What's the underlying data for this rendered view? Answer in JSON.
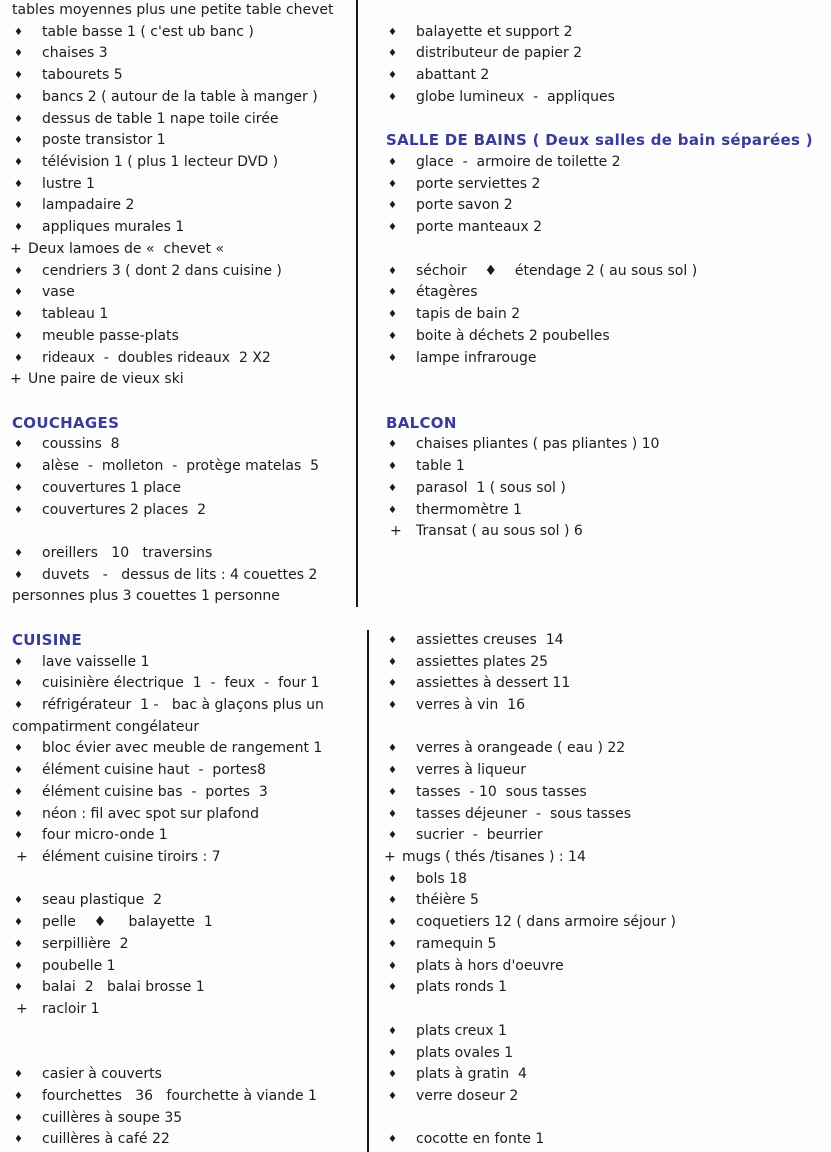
{
  "page": {
    "background": "#fdfdfd",
    "text_color": "#1c1c1c",
    "header_color": "#3a3a99",
    "divider_color": "#1a1a1a",
    "bullet_glyph": "♦",
    "plus_glyph": "+"
  },
  "columns": {
    "left": {
      "lines": [
        {
          "type": "plain",
          "text": "tables moyennes plus une petite table chevet"
        },
        {
          "type": "bullet",
          "text": "table basse 1 ( c'est ub banc )"
        },
        {
          "type": "bullet",
          "text": "chaises 3"
        },
        {
          "type": "bullet",
          "text": "tabourets 5"
        },
        {
          "type": "bullet",
          "text": "bancs 2 ( autour de la table à manger )"
        },
        {
          "type": "bullet",
          "text": "dessus de table 1 nape toile cirée"
        },
        {
          "type": "bullet",
          "text": "poste transistor 1"
        },
        {
          "type": "bullet",
          "text": "télévision 1 ( plus 1 lecteur DVD )"
        },
        {
          "type": "bullet",
          "text": "lustre 1"
        },
        {
          "type": "bullet",
          "text": "lampadaire 2"
        },
        {
          "type": "bullet",
          "text": "appliques murales 1"
        },
        {
          "type": "plus",
          "text": "Deux lamoes de «  chevet «"
        },
        {
          "type": "bullet",
          "text": "cendriers 3 ( dont 2 dans cuisine )"
        },
        {
          "type": "bullet",
          "text": "vase"
        },
        {
          "type": "bullet",
          "text": "tableau 1"
        },
        {
          "type": "bullet",
          "text": "meuble passe-plats"
        },
        {
          "type": "bullet",
          "text": "rideaux  -  doubles rideaux  2 X2"
        },
        {
          "type": "plus",
          "text": "Une paire de vieux ski"
        },
        {
          "type": "blank",
          "text": ""
        },
        {
          "type": "header",
          "text": "COUCHAGES"
        },
        {
          "type": "bullet",
          "text": "coussins  8"
        },
        {
          "type": "bullet",
          "text": "alèse  -  molleton  -  protège matelas  5"
        },
        {
          "type": "bullet",
          "text": "couvertures 1 place"
        },
        {
          "type": "bullet",
          "text": "couvertures 2 places  2"
        },
        {
          "type": "blank",
          "text": ""
        },
        {
          "type": "bullet",
          "text": "oreillers   10   traversins"
        },
        {
          "type": "bullet",
          "text": "duvets   -   dessus de lits : 4 couettes 2"
        },
        {
          "type": "cont",
          "text": "personnes plus 3 couettes 1 personne"
        },
        {
          "type": "blank",
          "text": ""
        },
        {
          "type": "header",
          "text": "CUISINE"
        },
        {
          "type": "bullet",
          "text": "lave vaisselle 1"
        },
        {
          "type": "bullet",
          "text": "cuisinière électrique  1  -  feux  -  four 1"
        },
        {
          "type": "bullet",
          "text": "réfrigérateur  1 -   bac à glaçons plus un"
        },
        {
          "type": "cont",
          "text": "compatirment congélateur"
        },
        {
          "type": "bullet",
          "text": "bloc évier avec meuble de rangement 1"
        },
        {
          "type": "bullet",
          "text": "élément cuisine haut  -  portes8"
        },
        {
          "type": "bullet",
          "text": "élément cuisine bas  -  portes  3"
        },
        {
          "type": "bullet",
          "text": "néon : fil avec spot sur plafond"
        },
        {
          "type": "bullet",
          "text": "four micro-onde 1"
        },
        {
          "type": "plusIndent",
          "text": "élément cuisine tiroirs : 7"
        },
        {
          "type": "blank",
          "text": ""
        },
        {
          "type": "bullet",
          "text": "seau plastique  2"
        },
        {
          "type": "bullet",
          "text": "pelle    ♦     balayette  1"
        },
        {
          "type": "bullet",
          "text": "serpillière  2"
        },
        {
          "type": "bullet",
          "text": "poubelle 1"
        },
        {
          "type": "bullet",
          "text": "balai  2   balai brosse 1"
        },
        {
          "type": "plusIndent",
          "text": "racloir 1"
        },
        {
          "type": "blank",
          "text": ""
        },
        {
          "type": "blank",
          "text": ""
        },
        {
          "type": "bullet",
          "text": "casier à couverts"
        },
        {
          "type": "bullet",
          "text": "fourchettes   36   fourchette à viande 1"
        },
        {
          "type": "bullet",
          "text": "cuillères à soupe 35"
        },
        {
          "type": "bullet",
          "text": "cuillères à café 22"
        }
      ]
    },
    "right": {
      "lines": [
        {
          "type": "blank",
          "text": ""
        },
        {
          "type": "bullet",
          "text": "balayette et support 2"
        },
        {
          "type": "bullet",
          "text": "distributeur de papier 2"
        },
        {
          "type": "bullet",
          "text": "abattant 2"
        },
        {
          "type": "bullet",
          "text": "globe lumineux  -  appliques"
        },
        {
          "type": "blank",
          "text": ""
        },
        {
          "type": "header",
          "text": "SALLE DE BAINS ( Deux salles de bain séparées )"
        },
        {
          "type": "bullet",
          "text": "glace  -  armoire de toilette 2"
        },
        {
          "type": "bullet",
          "text": "porte serviettes 2"
        },
        {
          "type": "bullet",
          "text": "porte savon 2"
        },
        {
          "type": "bullet",
          "text": "porte manteaux 2"
        },
        {
          "type": "blank",
          "text": ""
        },
        {
          "type": "bullet",
          "text": "séchoir    ♦    étendage 2 ( au sous sol )"
        },
        {
          "type": "bullet",
          "text": "étagères"
        },
        {
          "type": "bullet",
          "text": "tapis de bain 2"
        },
        {
          "type": "bullet",
          "text": "boite à déchets 2 poubelles"
        },
        {
          "type": "bullet",
          "text": "lampe infrarouge"
        },
        {
          "type": "blank",
          "text": ""
        },
        {
          "type": "blank",
          "text": ""
        },
        {
          "type": "header",
          "text": "BALCON"
        },
        {
          "type": "bullet",
          "text": "chaises pliantes ( pas pliantes ) 10"
        },
        {
          "type": "bullet",
          "text": "table 1"
        },
        {
          "type": "bullet",
          "text": "parasol  1 ( sous sol )"
        },
        {
          "type": "bullet",
          "text": "thermomètre 1"
        },
        {
          "type": "plusIndent",
          "text": "Transat ( au sous sol ) 6"
        },
        {
          "type": "blank",
          "text": ""
        },
        {
          "type": "blank",
          "text": ""
        },
        {
          "type": "blank",
          "text": ""
        },
        {
          "type": "blank",
          "text": ""
        },
        {
          "type": "bullet",
          "text": "assiettes creuses  14"
        },
        {
          "type": "bullet",
          "text": "assiettes plates 25"
        },
        {
          "type": "bullet",
          "text": "assiettes à dessert 11"
        },
        {
          "type": "bullet",
          "text": "verres à vin  16"
        },
        {
          "type": "blank",
          "text": ""
        },
        {
          "type": "bullet",
          "text": "verres à orangeade ( eau ) 22"
        },
        {
          "type": "bullet",
          "text": "verres à liqueur"
        },
        {
          "type": "bullet",
          "text": "tasses  - 10  sous tasses"
        },
        {
          "type": "bullet",
          "text": "tasses déjeuner  -  sous tasses"
        },
        {
          "type": "bullet",
          "text": "sucrier  -  beurrier"
        },
        {
          "type": "plus",
          "text": "mugs ( thés /tisanes ) : 14"
        },
        {
          "type": "bullet",
          "text": "bols 18"
        },
        {
          "type": "bullet",
          "text": "théière 5"
        },
        {
          "type": "bullet",
          "text": "coquetiers 12 ( dans armoire séjour )"
        },
        {
          "type": "bullet",
          "text": "ramequin 5"
        },
        {
          "type": "bullet",
          "text": "plats à hors d'oeuvre"
        },
        {
          "type": "bullet",
          "text": "plats ronds 1"
        },
        {
          "type": "blank",
          "text": ""
        },
        {
          "type": "bullet",
          "text": "plats creux 1"
        },
        {
          "type": "bullet",
          "text": "plats ovales 1"
        },
        {
          "type": "bullet",
          "text": "plats à gratin  4"
        },
        {
          "type": "bullet",
          "text": "verre doseur 2"
        },
        {
          "type": "blank",
          "text": ""
        },
        {
          "type": "bullet",
          "text": "cocotte en fonte 1"
        }
      ]
    }
  }
}
